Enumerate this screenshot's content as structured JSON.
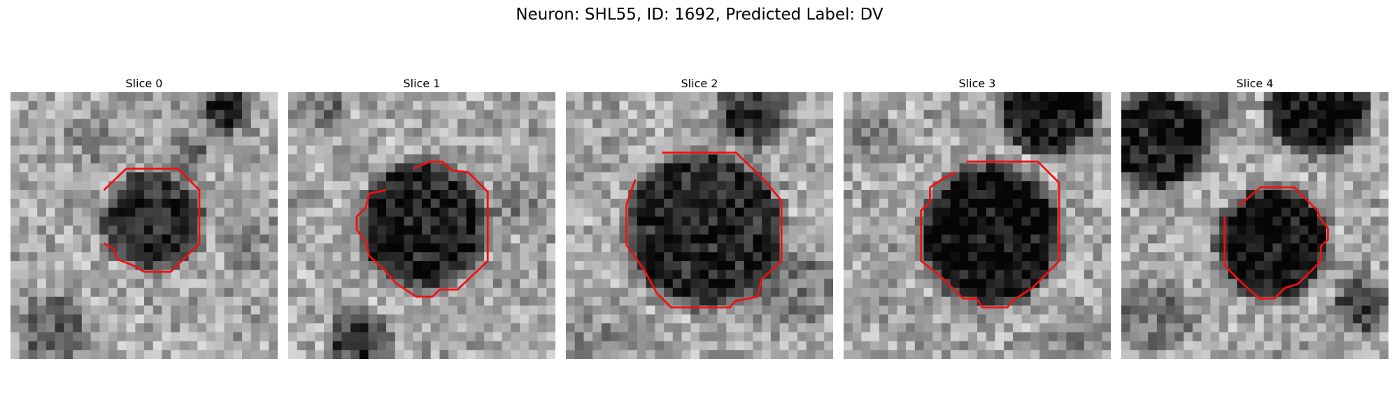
{
  "figure": {
    "title": "Neuron: SHL55, ID: 1692, Predicted Label: DV"
  },
  "panels": [
    {
      "title": "Slice 0"
    },
    {
      "title": "Slice 1"
    },
    {
      "title": "Slice 2"
    },
    {
      "title": "Slice 3"
    },
    {
      "title": "Slice 4"
    }
  ],
  "colors": {
    "contour": "#ee1111",
    "background": "#ffffff"
  }
}
